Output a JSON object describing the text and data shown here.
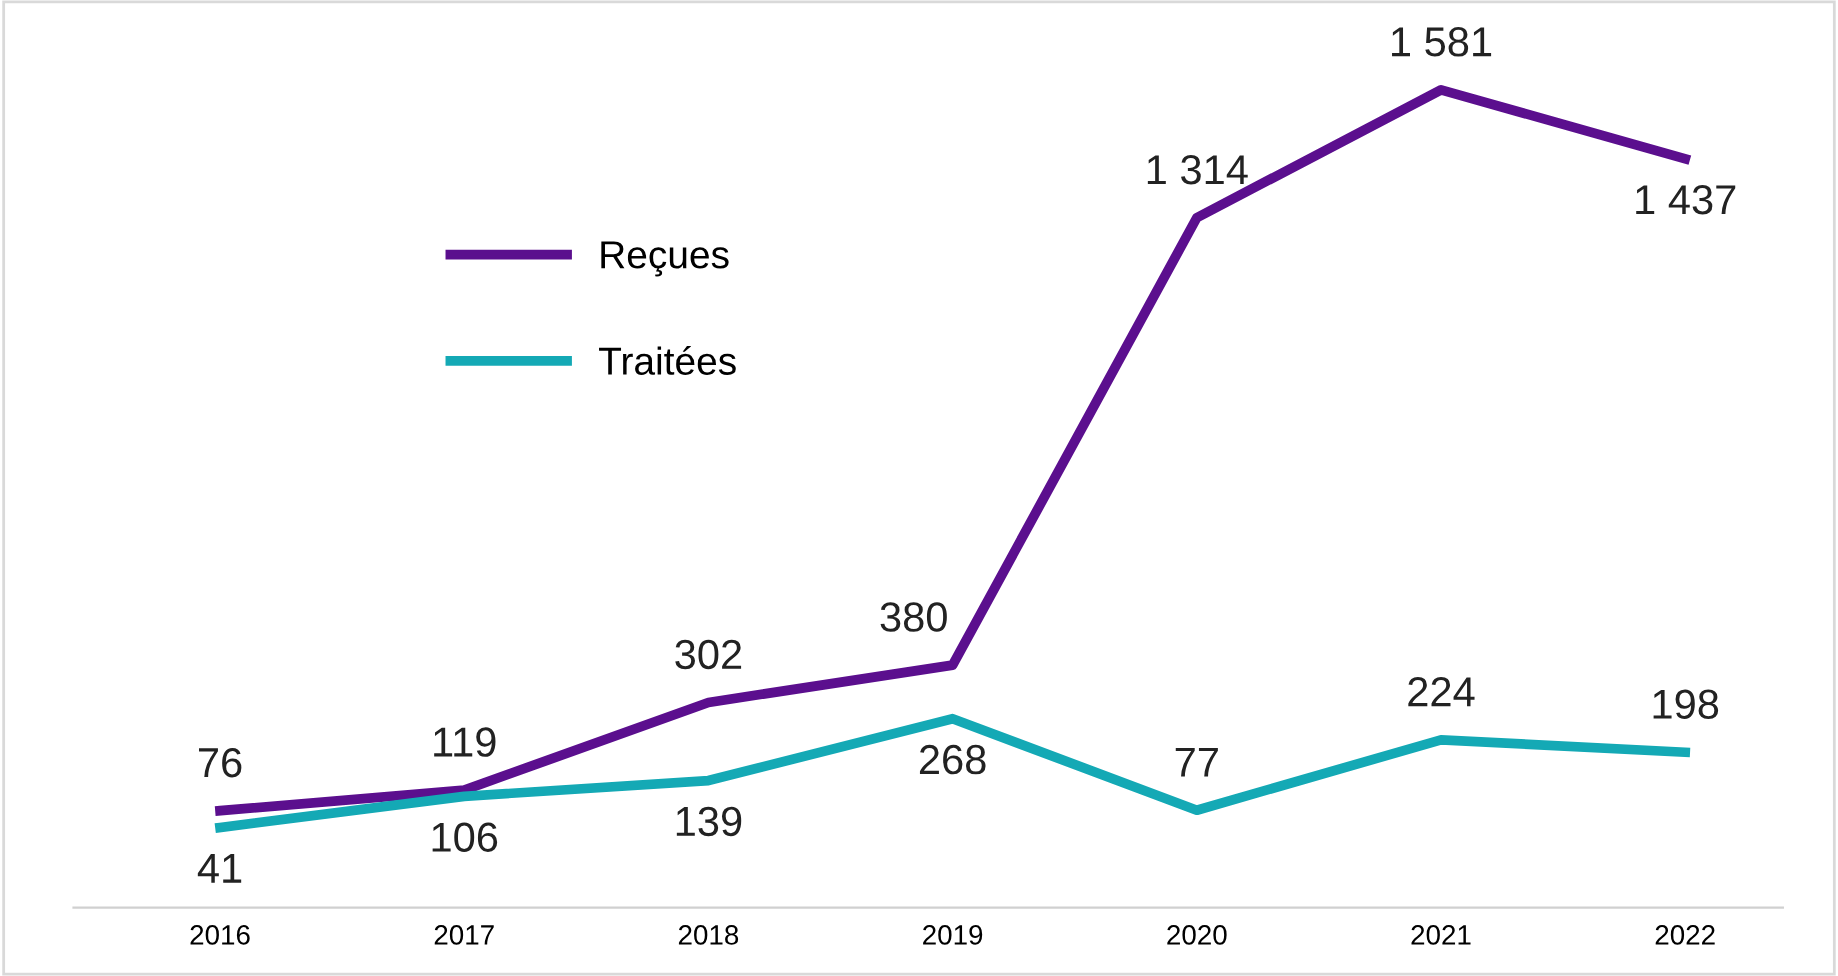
{
  "chart_data": {
    "type": "line",
    "categories": [
      "2016",
      "2017",
      "2018",
      "2019",
      "2020",
      "2021",
      "2022"
    ],
    "series": [
      {
        "name": "Reçues",
        "color": "#5b0f8e",
        "values": [
          76,
          119,
          302,
          380,
          1314,
          1581,
          1437
        ],
        "value_labels": [
          "76",
          "119",
          "302",
          "380",
          "1 314",
          "1 581",
          "1 437"
        ]
      },
      {
        "name": "Traitées",
        "color": "#14a9b5",
        "values": [
          41,
          106,
          139,
          268,
          77,
          224,
          198
        ],
        "value_labels": [
          "41",
          "106",
          "139",
          "268",
          "77",
          "224",
          "198"
        ]
      }
    ],
    "legend": "top left",
    "grid": false,
    "marker": "none",
    "line_style": "solid"
  }
}
